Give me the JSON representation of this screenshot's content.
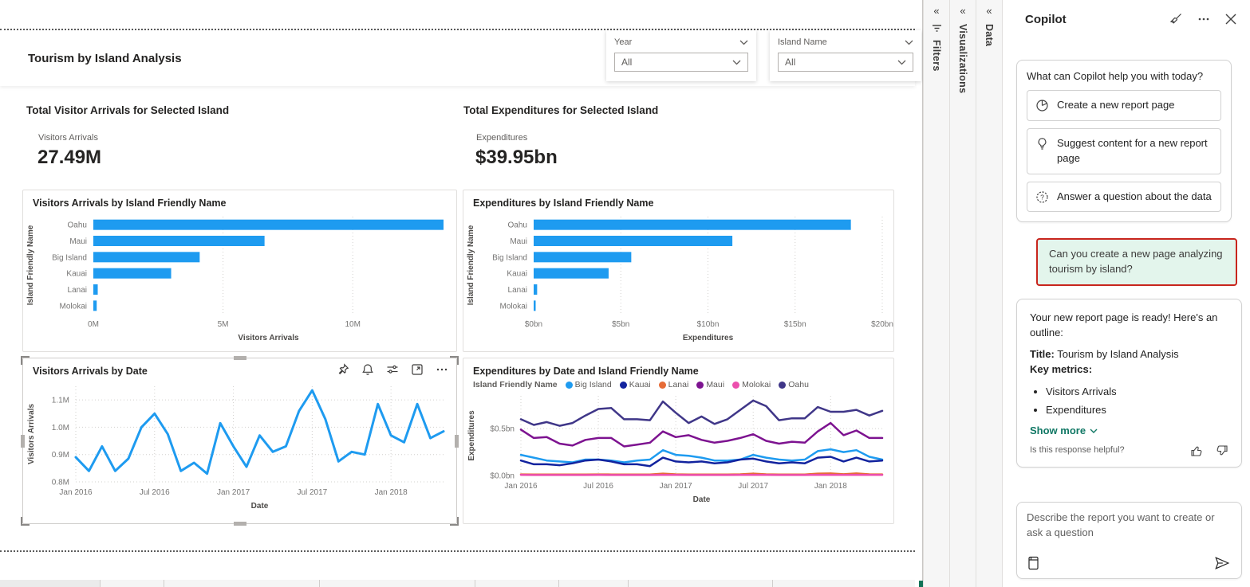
{
  "report": {
    "page_title": "Tourism by Island Analysis",
    "slicers": [
      {
        "label": "Year",
        "value": "All"
      },
      {
        "label": "Island Name",
        "value": "All"
      }
    ],
    "kpis": [
      {
        "title": "Total Visitor Arrivals for Selected Island",
        "caption": "Visitors Arrivals",
        "value": "27.49M"
      },
      {
        "title": "Total Expenditures for Selected Island",
        "caption": "Expenditures",
        "value": "$39.95bn"
      }
    ],
    "visual_toolbar_icons": [
      "pin-icon",
      "alert-icon",
      "filter-icon",
      "focus-mode-icon",
      "more-options-icon"
    ]
  },
  "panels": {
    "collapse_glyph": "«",
    "filters": "Filters",
    "visualizations": "Visualizations",
    "data": "Data"
  },
  "copilot": {
    "title": "Copilot",
    "header_icons": [
      "sweep-icon",
      "more-options-icon",
      "close-icon"
    ],
    "welcome": {
      "prompt": "What can Copilot help you with today?"
    },
    "suggestions": [
      {
        "icon": "pie-chart-icon",
        "label": "Create a new report page"
      },
      {
        "icon": "lightbulb-icon",
        "label": "Suggest content for a new report page"
      },
      {
        "icon": "question-bubble-icon",
        "label": "Answer a question about the data"
      }
    ],
    "user_message": "Can you create a new page analyzing tourism by island?",
    "response": {
      "intro": "Your new report page is ready! Here's an outline:",
      "title_label": "Title:",
      "title_value": "Tourism by Island Analysis",
      "metrics_label": "Key metrics:",
      "bullets": [
        "Visitors Arrivals",
        "Expenditures"
      ],
      "show_more": "Show more",
      "feedback_prompt": "Is this response helpful?"
    },
    "input": {
      "placeholder": "Describe the report you want to create or ask a question"
    },
    "colors": {
      "accent_teal": "#117865",
      "bubble_mint": "#e3f5ec",
      "highlight_red": "#c8251d"
    }
  },
  "chart_data": [
    {
      "id": "visitors_by_island",
      "type": "bar",
      "orientation": "horizontal",
      "title": "Visitors Arrivals by Island Friendly Name",
      "categories": [
        "Oahu",
        "Maui",
        "Big Island",
        "Kauai",
        "Lanai",
        "Molokai"
      ],
      "values": [
        13.5,
        6.6,
        4.1,
        3.0,
        0.17,
        0.13
      ],
      "unit": "M visitors",
      "xlabel": "Visitors Arrivals",
      "ylabel": "Island Friendly Name",
      "xlim": [
        0,
        13.5
      ],
      "xticks": [
        0,
        5,
        10
      ],
      "xtick_labels": [
        "0M",
        "5M",
        "10M"
      ],
      "color": "#1e9bf0",
      "grid": true
    },
    {
      "id": "expenditures_by_island",
      "type": "bar",
      "orientation": "horizontal",
      "title": "Expenditures by Island Friendly Name",
      "categories": [
        "Oahu",
        "Maui",
        "Big Island",
        "Kauai",
        "Lanai",
        "Molokai"
      ],
      "values": [
        18.2,
        11.4,
        5.6,
        4.3,
        0.2,
        0.1
      ],
      "unit": "$bn",
      "xlabel": "Expenditures",
      "ylabel": "Island Friendly Name",
      "xlim": [
        0,
        20
      ],
      "xticks": [
        0,
        5,
        10,
        15,
        20
      ],
      "xtick_labels": [
        "$0bn",
        "$5bn",
        "$10bn",
        "$15bn",
        "$20bn"
      ],
      "color": "#1e9bf0",
      "grid": true
    },
    {
      "id": "visitors_by_date",
      "type": "line",
      "title": "Visitors Arrivals by Date",
      "x_unit": "month",
      "x_range": [
        "Jan 2016",
        "May 2018"
      ],
      "values": [
        0.89,
        0.84,
        0.93,
        0.84,
        0.885,
        1.0,
        1.05,
        0.975,
        0.84,
        0.87,
        0.83,
        1.015,
        0.93,
        0.855,
        0.97,
        0.91,
        0.93,
        1.06,
        1.135,
        1.03,
        0.875,
        0.91,
        0.9,
        1.085,
        0.97,
        0.945,
        1.085,
        0.96,
        0.985
      ],
      "unit": "M visitors",
      "xlabel": "Date",
      "ylabel": "Visitors Arrivals",
      "ylim": [
        0.8,
        1.15
      ],
      "yticks": [
        0.8,
        0.9,
        1.0,
        1.1
      ],
      "ytick_labels": [
        "0.8M",
        "0.9M",
        "1.0M",
        "1.1M"
      ],
      "xtick_idx": [
        0,
        6,
        12,
        18,
        24
      ],
      "xtick_labels": [
        "Jan 2016",
        "Jul 2016",
        "Jan 2017",
        "Jul 2017",
        "Jan 2018"
      ],
      "color": "#1e9bf0",
      "grid": true,
      "selected": true
    },
    {
      "id": "expenditures_by_date",
      "type": "line",
      "title": "Expenditures by Date and Island Friendly Name",
      "legend_title": "Island Friendly Name",
      "legend_position": "top",
      "x_unit": "month",
      "x_range": [
        "Jan 2016",
        "May 2018"
      ],
      "xlabel": "Date",
      "ylabel": "Expenditures",
      "ylim": [
        0,
        0.85
      ],
      "yticks": [
        0,
        0.5
      ],
      "ytick_labels": [
        "$0.0bn",
        "$0.5bn"
      ],
      "xtick_idx": [
        0,
        6,
        12,
        18,
        24
      ],
      "xtick_labels": [
        "Jan 2016",
        "Jul 2016",
        "Jan 2017",
        "Jul 2017",
        "Jan 2018"
      ],
      "unit": "$bn",
      "grid": true,
      "series": [
        {
          "name": "Big Island",
          "color": "#1e9bf0",
          "values": [
            0.22,
            0.19,
            0.16,
            0.15,
            0.14,
            0.17,
            0.17,
            0.16,
            0.14,
            0.16,
            0.17,
            0.27,
            0.22,
            0.21,
            0.19,
            0.16,
            0.16,
            0.17,
            0.22,
            0.19,
            0.17,
            0.16,
            0.17,
            0.26,
            0.28,
            0.25,
            0.27,
            0.2,
            0.17
          ]
        },
        {
          "name": "Kauai",
          "color": "#12239e",
          "values": [
            0.16,
            0.12,
            0.12,
            0.11,
            0.13,
            0.16,
            0.17,
            0.15,
            0.12,
            0.12,
            0.1,
            0.19,
            0.15,
            0.14,
            0.15,
            0.13,
            0.14,
            0.17,
            0.18,
            0.15,
            0.13,
            0.14,
            0.13,
            0.19,
            0.2,
            0.15,
            0.19,
            0.15,
            0.16
          ]
        },
        {
          "name": "Lanai",
          "color": "#e66c37",
          "values": [
            0.012,
            0.01,
            0.01,
            0.01,
            0.01,
            0.011,
            0.012,
            0.011,
            0.01,
            0.01,
            0.01,
            0.02,
            0.013,
            0.011,
            0.011,
            0.01,
            0.011,
            0.013,
            0.02,
            0.013,
            0.01,
            0.011,
            0.011,
            0.02,
            0.022,
            0.014,
            0.022,
            0.013,
            0.012
          ]
        },
        {
          "name": "Maui",
          "color": "#7d1390",
          "values": [
            0.49,
            0.4,
            0.41,
            0.34,
            0.32,
            0.38,
            0.4,
            0.4,
            0.31,
            0.33,
            0.35,
            0.47,
            0.41,
            0.43,
            0.38,
            0.35,
            0.37,
            0.4,
            0.44,
            0.37,
            0.34,
            0.36,
            0.35,
            0.47,
            0.56,
            0.43,
            0.48,
            0.4,
            0.4
          ]
        },
        {
          "name": "Molokai",
          "color": "#ec4fad",
          "values": [
            0.006,
            0.005,
            0.005,
            0.005,
            0.005,
            0.005,
            0.006,
            0.005,
            0.005,
            0.005,
            0.005,
            0.007,
            0.006,
            0.005,
            0.005,
            0.005,
            0.005,
            0.006,
            0.007,
            0.006,
            0.005,
            0.005,
            0.005,
            0.007,
            0.007,
            0.006,
            0.007,
            0.006,
            0.006
          ]
        },
        {
          "name": "Oahu",
          "color": "#3f3688",
          "values": [
            0.6,
            0.54,
            0.57,
            0.53,
            0.56,
            0.64,
            0.71,
            0.72,
            0.6,
            0.6,
            0.59,
            0.79,
            0.67,
            0.56,
            0.63,
            0.55,
            0.6,
            0.7,
            0.8,
            0.74,
            0.59,
            0.61,
            0.61,
            0.73,
            0.68,
            0.68,
            0.7,
            0.64,
            0.69
          ]
        }
      ]
    }
  ]
}
